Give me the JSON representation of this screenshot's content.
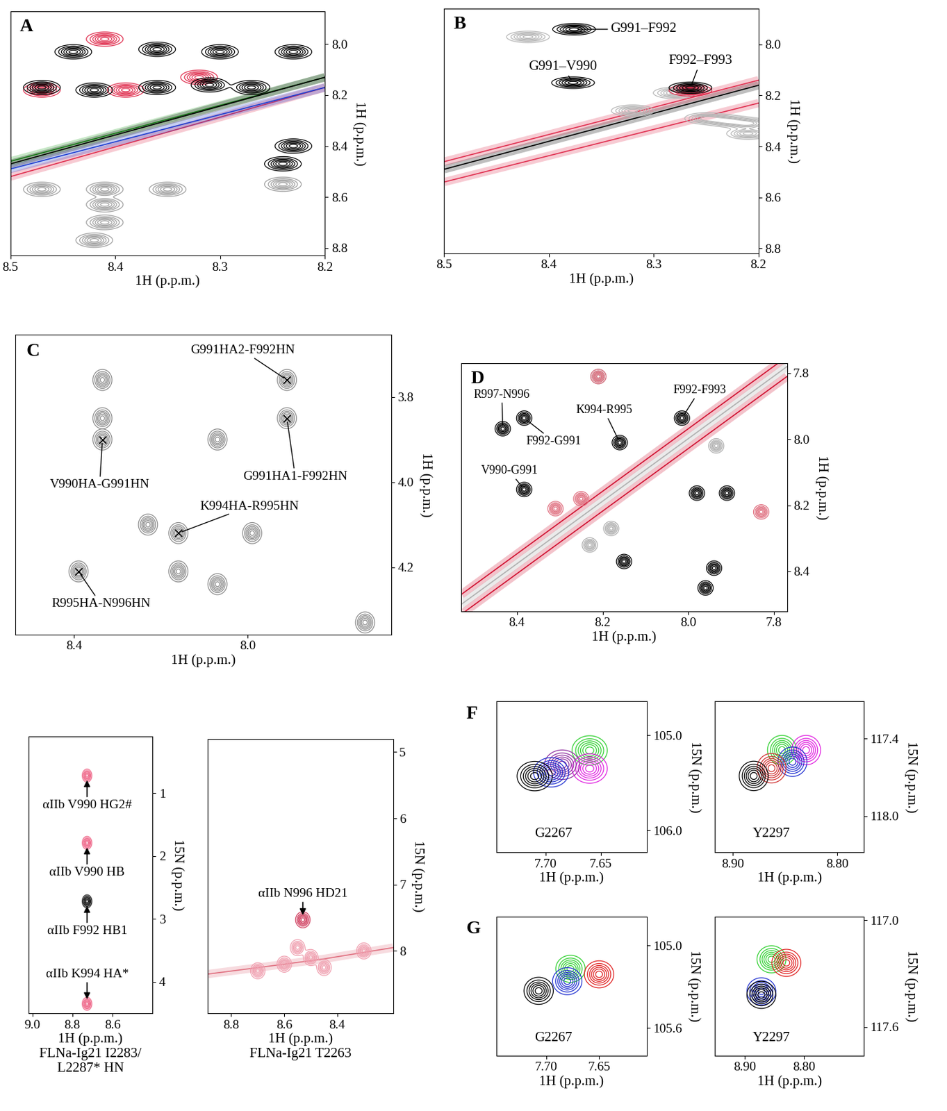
{
  "chart_data": [
    {
      "type": "contour",
      "panel": "A",
      "xlabel": "1H (p.p.m.)",
      "ylabel": "1H (p.p.m.)",
      "xlim": [
        8.5,
        8.2
      ],
      "ylim": [
        8.83,
        7.87
      ],
      "xticks": [
        8.5,
        8.4,
        8.3,
        8.2
      ],
      "yticks": [
        8.0,
        8.2,
        8.4,
        8.6,
        8.8
      ],
      "diagonals": [
        {
          "color": "#e03050",
          "x": [
            8.5,
            8.2
          ],
          "y": [
            8.52,
            8.17
          ]
        },
        {
          "color": "#1f3fd0",
          "x": [
            8.5,
            8.2
          ],
          "y": [
            8.49,
            8.17
          ]
        },
        {
          "color": "#20a020",
          "x": [
            8.5,
            8.2
          ],
          "y": [
            8.46,
            8.13
          ]
        },
        {
          "color": "#000000",
          "x": [
            8.5,
            8.2
          ],
          "y": [
            8.47,
            8.13
          ]
        }
      ],
      "peaks": [
        {
          "color": "#e03050",
          "x": [
            8.41,
            8.47,
            8.39,
            8.32
          ],
          "y": [
            7.98,
            8.18,
            8.18,
            8.13
          ]
        },
        {
          "color": "#000000",
          "x": [
            8.44,
            8.36,
            8.3,
            8.23,
            8.47,
            8.42,
            8.36,
            8.31,
            8.27,
            8.24,
            8.23
          ],
          "y": [
            8.03,
            8.02,
            8.03,
            8.03,
            8.17,
            8.18,
            8.17,
            8.16,
            8.17,
            8.47,
            8.4
          ]
        },
        {
          "color": "#a0a0a0",
          "x": [
            8.47,
            8.41,
            8.41,
            8.41,
            8.42,
            8.35,
            8.24
          ],
          "y": [
            8.57,
            8.57,
            8.63,
            8.7,
            8.77,
            8.57,
            8.55
          ]
        }
      ]
    },
    {
      "type": "contour",
      "panel": "B",
      "xlabel": "1H (p.p.m.)",
      "ylabel": "1H (p.p.m.)",
      "xlim": [
        8.5,
        8.2
      ],
      "ylim": [
        8.82,
        7.86
      ],
      "xticks": [
        8.5,
        8.4,
        8.3,
        8.2
      ],
      "yticks": [
        8.0,
        8.2,
        8.4,
        8.6,
        8.8
      ],
      "diagonals": [
        {
          "color": "#000000",
          "x": [
            8.5,
            8.2
          ],
          "y": [
            8.49,
            8.16
          ]
        },
        {
          "color": "#e03050",
          "x": [
            8.5,
            8.2
          ],
          "y": [
            8.46,
            8.14
          ]
        },
        {
          "color": "#e03050",
          "x": [
            8.5,
            8.2
          ],
          "y": [
            8.54,
            8.23
          ]
        }
      ],
      "peaks": [
        {
          "color": "#b8b8b8",
          "x": [
            8.42,
            8.28,
            8.32,
            8.25,
            8.23,
            8.21,
            8.21
          ],
          "y": [
            7.97,
            8.19,
            8.26,
            8.29,
            8.3,
            8.35,
            8.31
          ]
        },
        {
          "color": "#e03050",
          "x": [
            8.265
          ],
          "y": [
            8.18
          ]
        },
        {
          "color": "#000000",
          "x": [
            8.376,
            8.377,
            8.265
          ],
          "y": [
            7.94,
            8.15,
            8.17
          ],
          "labels": [
            "G991–F992",
            "G991–V990",
            "F992–F993"
          ]
        }
      ]
    },
    {
      "type": "contour",
      "panel": "C",
      "xlabel": "1H (p.p.m.)",
      "ylabel": "1H (p.p.m.)",
      "xlim": [
        8.536,
        7.67
      ],
      "ylim": [
        4.358,
        3.653
      ],
      "xticks": [
        8.4,
        8.0
      ],
      "yticks": [
        3.8,
        4.0,
        4.2
      ],
      "peaks": [
        {
          "color": "#8c8c8c",
          "x": [
            8.335,
            8.335,
            8.07,
            8.23,
            7.99,
            8.16,
            8.07,
            7.73
          ],
          "y": [
            3.76,
            3.85,
            3.9,
            4.1,
            4.12,
            4.21,
            4.24,
            4.33
          ]
        },
        {
          "color": "#8c8c8c",
          "marker": "x",
          "x": [
            7.91,
            7.91,
            8.335,
            8.16,
            8.39
          ],
          "y": [
            3.76,
            3.85,
            3.9,
            4.12,
            4.21
          ],
          "labels": [
            "G991HA2-F992HN",
            "G991HA1-F992HN",
            "V990HA-G991HN",
            "K994HA-R995HN",
            "R995HA-N996HN"
          ]
        }
      ]
    },
    {
      "type": "contour",
      "panel": "D",
      "xlabel": "1H (p.p.m.)",
      "ylabel": "1H (p.p.m.)",
      "xlim": [
        8.53,
        7.77
      ],
      "ylim": [
        8.52,
        7.77
      ],
      "xticks": [
        8.4,
        8.2,
        8.0,
        7.8
      ],
      "yticks": [
        7.8,
        8.0,
        8.2,
        8.4
      ],
      "diagonals": [
        {
          "color": "#b0b0b0",
          "x": [
            8.53,
            7.77
          ],
          "y": [
            8.5,
            7.78
          ]
        },
        {
          "color": "#d01030",
          "x": [
            8.53,
            7.77
          ],
          "y": [
            8.47,
            7.75
          ]
        },
        {
          "color": "#d01030",
          "x": [
            8.53,
            7.77
          ],
          "y": [
            8.53,
            7.81
          ]
        }
      ],
      "peaks": [
        {
          "color": "#b0b0b0",
          "x": [
            7.935,
            8.21,
            8.18,
            8.23
          ],
          "y": [
            8.02,
            7.81,
            8.27,
            8.32
          ]
        },
        {
          "color": "#e07080",
          "x": [
            8.31,
            8.25,
            7.83,
            8.21
          ],
          "y": [
            8.21,
            8.18,
            8.22,
            7.81
          ]
        },
        {
          "color": "#000000",
          "x": [
            7.98,
            7.91,
            8.15,
            7.94,
            7.96
          ],
          "y": [
            8.163,
            8.163,
            8.37,
            8.39,
            8.45
          ]
        },
        {
          "color": "#000000",
          "x": [
            8.433,
            8.383,
            8.16,
            8.015,
            8.383
          ],
          "y": [
            7.968,
            7.936,
            8.01,
            7.936,
            8.152
          ],
          "labels": [
            "R997-N996",
            "F992-G991",
            "K994-R995",
            "F992-F993",
            "V990-G991"
          ]
        }
      ]
    },
    {
      "type": "contour",
      "xlabel": "1H (p.p.m.)",
      "caption": "FLNa-Ig21 I2283/\nL2287* HN",
      "ylabel": "15N (p.p.m.)",
      "xlim": [
        9.02,
        8.4
      ],
      "ylim": [
        4.5,
        0.1
      ],
      "xticks": [
        9.0,
        8.8,
        8.6
      ],
      "yticks": [
        1,
        2,
        3,
        4
      ],
      "peaks": [
        {
          "color": "#f07090",
          "x": [
            8.727,
            8.727,
            8.727
          ],
          "y": [
            0.72,
            1.79,
            4.35
          ],
          "labels": [
            "αIIb V990 HG2#",
            "αIIb V990 HB",
            "αIIb K994 HA*"
          ]
        },
        {
          "color": "#202020",
          "x": [
            8.727
          ],
          "y": [
            2.72
          ],
          "labels": [
            "αIIb F992 HB1"
          ]
        }
      ]
    },
    {
      "type": "contour",
      "xlabel": "1H (p.p.m.)",
      "caption": "FLNa-Ig21 T2263",
      "ylabel": "15N (p.p.m.)",
      "xlim": [
        8.89,
        8.19
      ],
      "ylim": [
        8.94,
        4.8
      ],
      "xticks": [
        8.8,
        8.6,
        8.4
      ],
      "yticks": [
        5,
        6,
        7,
        8
      ],
      "diagonals": [
        {
          "color": "#e07080",
          "x": [
            8.89,
            8.6,
            8.45,
            8.19
          ],
          "y": [
            8.35,
            8.2,
            8.12,
            7.95
          ]
        }
      ],
      "peaks": [
        {
          "color": "#f0a0b0",
          "x": [
            8.55,
            8.5,
            8.45,
            8.6,
            8.7,
            8.3
          ],
          "y": [
            7.95,
            8.1,
            8.25,
            8.2,
            8.3,
            8.0
          ]
        },
        {
          "color": "#d04060",
          "x": [
            8.53
          ],
          "y": [
            7.53
          ],
          "labels": [
            "αIIb N996 HD21"
          ]
        }
      ]
    },
    {
      "type": "contour",
      "panel": "F",
      "label": "G2267",
      "xlabel": "1H (p.p.m.)",
      "ylabel": "15N (p.p.m.)",
      "xlim": [
        7.745,
        7.608
      ],
      "ylim": [
        106.23,
        104.64
      ],
      "xticks": [
        {
          "value": 7.7,
          "label": "7.70"
        },
        7.65
      ],
      "yticks": [
        105.0,
        106.0
      ],
      "peaks": [
        {
          "color": "#30d030",
          "x": [
            7.66
          ],
          "y": [
            105.16
          ]
        },
        {
          "color": "#e020e0",
          "x": [
            7.66
          ],
          "y": [
            105.35
          ]
        },
        {
          "color": "#9030a0",
          "x": [
            7.685
          ],
          "y": [
            105.31
          ]
        },
        {
          "color": "#2030d0",
          "x": [
            7.695
          ],
          "y": [
            105.39
          ]
        },
        {
          "color": "#000000",
          "x": [
            7.71
          ],
          "y": [
            105.43
          ]
        }
      ]
    },
    {
      "type": "contour",
      "label": "Y2297",
      "xlabel": "1H (p.p.m.)",
      "ylabel": "15N (p.p.m.)",
      "xlim": [
        8.917,
        8.775
      ],
      "ylim": [
        118.28,
        117.11
      ],
      "xticks": [
        {
          "value": 8.9,
          "label": "8.90"
        },
        {
          "value": 8.8,
          "label": "8.80"
        }
      ],
      "yticks": [
        117.4,
        118.0
      ],
      "peaks": [
        {
          "color": "#30d030",
          "x": [
            8.853
          ],
          "y": [
            117.49
          ]
        },
        {
          "color": "#e020e0",
          "x": [
            8.83
          ],
          "y": [
            117.49
          ]
        },
        {
          "color": "#2030d0",
          "x": [
            8.843
          ],
          "y": [
            117.58
          ]
        },
        {
          "color": "#d03030",
          "x": [
            8.863
          ],
          "y": [
            117.63
          ]
        },
        {
          "color": "#000000",
          "x": [
            8.88
          ],
          "y": [
            117.69
          ]
        }
      ]
    },
    {
      "type": "contour",
      "panel": "G",
      "label": "G2267",
      "xlabel": "1H (p.p.m.)",
      "ylabel": "15N (p.p.m.)",
      "xlim": [
        7.747,
        7.605
      ],
      "ylim": [
        105.8,
        104.79
      ],
      "xticks": [
        {
          "value": 7.7,
          "label": "7.70"
        },
        7.65
      ],
      "yticks": [
        105.0,
        105.6
      ],
      "peaks": [
        {
          "color": "#30d030",
          "x": [
            7.677
          ],
          "y": [
            105.17
          ]
        },
        {
          "color": "#e02020",
          "x": [
            7.65
          ],
          "y": [
            105.21
          ]
        },
        {
          "color": "#2030d0",
          "x": [
            7.68
          ],
          "y": [
            105.26
          ]
        },
        {
          "color": "#000000",
          "x": [
            7.707
          ],
          "y": [
            105.33
          ]
        }
      ]
    },
    {
      "type": "contour",
      "label": "Y2297",
      "xlabel": "1H (p.p.m.)",
      "ylabel": "15N (p.p.m.)",
      "xlim": [
        8.95,
        8.7
      ],
      "ylim": [
        117.76,
        116.98
      ],
      "xticks": [
        {
          "value": 8.9,
          "label": "8.90"
        },
        {
          "value": 8.8,
          "label": "8.80"
        }
      ],
      "yticks": [
        117.0,
        117.6
      ],
      "peaks": [
        {
          "color": "#30d030",
          "x": [
            8.855
          ],
          "y": [
            117.22
          ]
        },
        {
          "color": "#e02020",
          "x": [
            8.83
          ],
          "y": [
            117.24
          ]
        },
        {
          "color": "#2030d0",
          "x": [
            8.872
          ],
          "y": [
            117.4
          ]
        },
        {
          "color": "#000000",
          "x": [
            8.872
          ],
          "y": [
            117.42
          ]
        }
      ]
    }
  ]
}
